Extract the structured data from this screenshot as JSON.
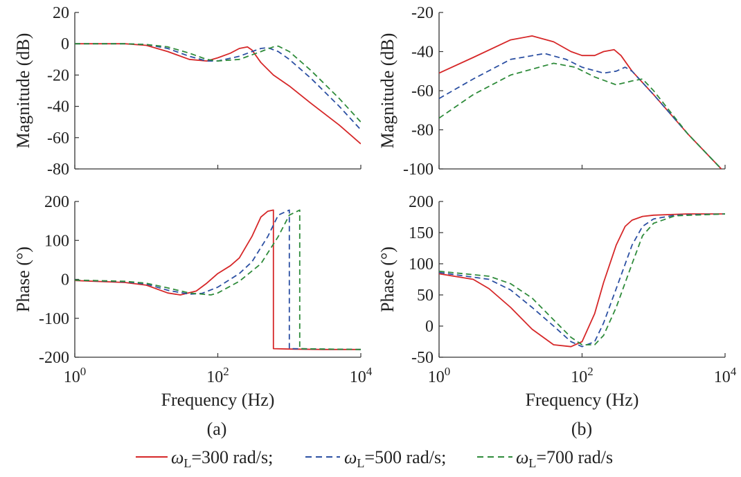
{
  "legend": {
    "entries": [
      {
        "sym": "ω",
        "sub": "L",
        "text": "=300 rad/s;",
        "color": "#d62728",
        "dash": "solid"
      },
      {
        "sym": "ω",
        "sub": "L",
        "text": "=500 rad/s;",
        "color": "#2b4fa2",
        "dash": "dashed"
      },
      {
        "sym": "ω",
        "sub": "L",
        "text": "=700 rad/s",
        "color": "#2e8b3a",
        "dash": "dashed"
      }
    ]
  },
  "chart_data": [
    {
      "id": "a-magnitude",
      "type": "line",
      "xscale": "log",
      "xlabel": "",
      "ylabel": "Magnitude (dB)",
      "xlim": [
        1,
        10000
      ],
      "ylim": [
        -80,
        20
      ],
      "yticks": [
        20,
        0,
        -20,
        -40,
        -60,
        -80
      ],
      "series": [
        {
          "name": "ωL=300 rad/s",
          "color": "#d62728",
          "dash": "solid",
          "x": [
            1,
            5,
            10,
            20,
            40,
            70,
            100,
            150,
            200,
            260,
            300,
            400,
            600,
            1000,
            2000,
            5000,
            10000
          ],
          "y": [
            0,
            0,
            -1,
            -5,
            -10,
            -11,
            -9,
            -6,
            -3,
            -2,
            -4,
            -12,
            -20,
            -27,
            -38,
            -52,
            -64
          ]
        },
        {
          "name": "ωL=500 rad/s",
          "color": "#2b4fa2",
          "dash": "dashed",
          "x": [
            1,
            5,
            10,
            20,
            40,
            70,
            100,
            200,
            300,
            400,
            500,
            700,
            1000,
            2000,
            5000,
            10000
          ],
          "y": [
            0,
            0,
            -0.5,
            -3,
            -8,
            -11,
            -11,
            -8,
            -5,
            -3,
            -2.5,
            -5,
            -10,
            -22,
            -40,
            -55
          ]
        },
        {
          "name": "ωL=700 rad/s",
          "color": "#2e8b3a",
          "dash": "dashed",
          "x": [
            1,
            5,
            10,
            20,
            40,
            70,
            100,
            200,
            400,
            600,
            700,
            1000,
            2000,
            5000,
            10000
          ],
          "y": [
            0,
            0,
            -0.5,
            -2,
            -6,
            -10,
            -11,
            -10,
            -5,
            -2,
            -1.5,
            -5,
            -17,
            -35,
            -50
          ]
        }
      ]
    },
    {
      "id": "a-phase",
      "type": "line",
      "xscale": "log",
      "xlabel": "Frequency (Hz)",
      "ylabel": "Phase (°)",
      "xlim": [
        1,
        10000
      ],
      "ylim": [
        -200,
        200
      ],
      "yticks": [
        200,
        100,
        0,
        -100,
        -200
      ],
      "xticks": [
        {
          "base": "10",
          "exp": "0"
        },
        {
          "base": "10",
          "exp": "2"
        },
        {
          "base": "10",
          "exp": "4"
        }
      ],
      "series": [
        {
          "name": "ωL=300 rad/s",
          "color": "#d62728",
          "dash": "solid",
          "x": [
            1,
            5,
            10,
            20,
            30,
            50,
            70,
            100,
            150,
            200,
            300,
            400,
            500,
            600,
            600,
            1000,
            3000,
            10000
          ],
          "y": [
            -3,
            -8,
            -15,
            -35,
            -40,
            -30,
            -10,
            15,
            35,
            55,
            110,
            160,
            175,
            178,
            -178,
            -179,
            -180,
            -180
          ]
        },
        {
          "name": "ωL=500 rad/s",
          "color": "#2b4fa2",
          "dash": "dashed",
          "x": [
            1,
            5,
            10,
            20,
            40,
            60,
            100,
            200,
            300,
            500,
            700,
            1000,
            1000,
            3000,
            10000
          ],
          "y": [
            -2,
            -6,
            -12,
            -28,
            -38,
            -36,
            -20,
            15,
            45,
            110,
            165,
            178,
            -178,
            -179,
            -180
          ]
        },
        {
          "name": "ωL=700 rad/s",
          "color": "#2e8b3a",
          "dash": "dashed",
          "x": [
            1,
            5,
            10,
            20,
            40,
            80,
            100,
            200,
            400,
            700,
            1000,
            1400,
            1400,
            3000,
            10000
          ],
          "y": [
            -2,
            -5,
            -10,
            -22,
            -35,
            -40,
            -35,
            -5,
            40,
            110,
            165,
            178,
            -178,
            -179,
            -180
          ]
        }
      ]
    },
    {
      "id": "b-magnitude",
      "type": "line",
      "xscale": "log",
      "xlabel": "",
      "ylabel": "Magnitude (dB)",
      "xlim": [
        1,
        10000
      ],
      "ylim": [
        -100,
        -20
      ],
      "yticks": [
        -20,
        -40,
        -60,
        -80,
        -100
      ],
      "series": [
        {
          "name": "ωL=300 rad/s",
          "color": "#d62728",
          "dash": "solid",
          "x": [
            1,
            3,
            10,
            20,
            40,
            70,
            100,
            150,
            200,
            280,
            350,
            500,
            1000,
            3000,
            10000
          ],
          "y": [
            -51,
            -43,
            -34,
            -32,
            -35,
            -40,
            -42,
            -42,
            -40,
            -39,
            -42,
            -50,
            -62,
            -82,
            -102
          ]
        },
        {
          "name": "ωL=500 rad/s",
          "color": "#2b4fa2",
          "dash": "dashed",
          "x": [
            1,
            3,
            10,
            30,
            60,
            100,
            200,
            300,
            400,
            500,
            1000,
            3000,
            10000
          ],
          "y": [
            -64,
            -54,
            -44,
            -41,
            -44,
            -48,
            -51,
            -50,
            -48,
            -50,
            -62,
            -82,
            -102
          ]
        },
        {
          "name": "ωL=700 rad/s",
          "color": "#2e8b3a",
          "dash": "dashed",
          "x": [
            1,
            3,
            10,
            40,
            80,
            150,
            300,
            500,
            700,
            1000,
            3000,
            10000
          ],
          "y": [
            -74,
            -62,
            -52,
            -46,
            -48,
            -53,
            -57,
            -55,
            -54,
            -60,
            -82,
            -102
          ]
        }
      ]
    },
    {
      "id": "b-phase",
      "type": "line",
      "xscale": "log",
      "xlabel": "Frequency (Hz)",
      "ylabel": "Phase (°)",
      "xlim": [
        1,
        10000
      ],
      "ylim": [
        -50,
        200
      ],
      "yticks": [
        200,
        150,
        100,
        50,
        0,
        -50
      ],
      "xticks": [
        {
          "base": "10",
          "exp": "0"
        },
        {
          "base": "10",
          "exp": "2"
        },
        {
          "base": "10",
          "exp": "4"
        }
      ],
      "series": [
        {
          "name": "ωL=300 rad/s",
          "color": "#d62728",
          "dash": "solid",
          "x": [
            1,
            3,
            5,
            10,
            20,
            40,
            70,
            100,
            150,
            200,
            300,
            400,
            500,
            700,
            1000,
            3000,
            10000
          ],
          "y": [
            84,
            75,
            60,
            30,
            -5,
            -30,
            -33,
            -25,
            20,
            70,
            130,
            160,
            170,
            176,
            178,
            180,
            180
          ]
        },
        {
          "name": "ωL=500 rad/s",
          "color": "#2b4fa2",
          "dash": "dashed",
          "x": [
            1,
            5,
            10,
            20,
            40,
            70,
            100,
            150,
            200,
            300,
            500,
            700,
            1000,
            2000,
            10000
          ],
          "y": [
            86,
            75,
            58,
            30,
            0,
            -25,
            -33,
            -25,
            5,
            60,
            130,
            160,
            172,
            178,
            180
          ]
        },
        {
          "name": "ωL=700 rad/s",
          "color": "#2e8b3a",
          "dash": "dashed",
          "x": [
            1,
            5,
            10,
            20,
            40,
            70,
            100,
            150,
            200,
            300,
            500,
            700,
            1000,
            2000,
            10000
          ],
          "y": [
            88,
            80,
            68,
            45,
            10,
            -18,
            -30,
            -30,
            -15,
            30,
            100,
            145,
            165,
            177,
            180
          ]
        }
      ]
    }
  ],
  "captions": [
    "(a)",
    "(b)"
  ]
}
